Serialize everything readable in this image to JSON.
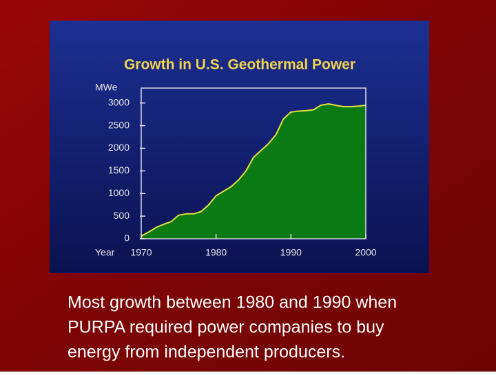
{
  "chart_data": {
    "type": "area",
    "title": "Growth in U.S. Geothermal Power",
    "y_label": "MWe",
    "x_label": "Year",
    "x": [
      1970,
      1971,
      1972,
      1973,
      1974,
      1975,
      1976,
      1977,
      1978,
      1979,
      1980,
      1981,
      1982,
      1983,
      1984,
      1985,
      1986,
      1987,
      1988,
      1989,
      1990,
      1991,
      1992,
      1993,
      1994,
      1995,
      1996,
      1997,
      1998,
      1999,
      2000
    ],
    "values": [
      60,
      150,
      250,
      320,
      380,
      520,
      550,
      550,
      600,
      750,
      950,
      1050,
      1150,
      1300,
      1500,
      1800,
      1950,
      2100,
      2300,
      2650,
      2800,
      2820,
      2830,
      2850,
      2950,
      2980,
      2950,
      2920,
      2920,
      2930,
      2950
    ],
    "color": "#0b7a12",
    "line_color": "#e8e040",
    "xlim": [
      1970,
      2000
    ],
    "xticks": [
      1970,
      1980,
      1990,
      2000
    ],
    "ylim": [
      0,
      3330
    ],
    "yticks": [
      0,
      500,
      1000,
      1500,
      2000,
      2500,
      3000
    ]
  },
  "caption": [
    "Most growth between 1980 and 1990 when",
    "PURPA required power companies to buy",
    "energy from independent producers."
  ]
}
